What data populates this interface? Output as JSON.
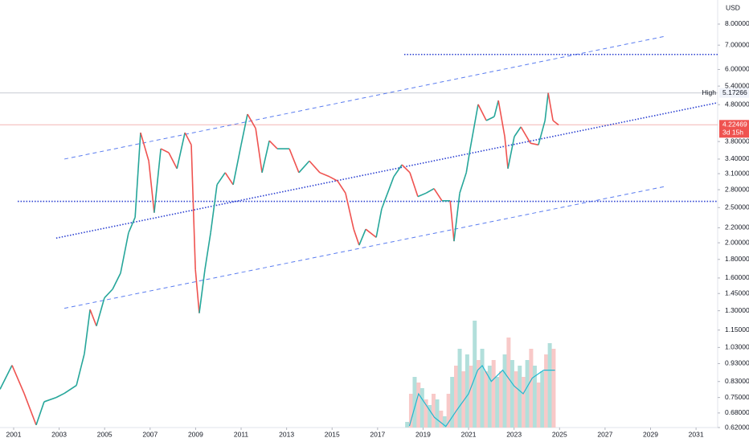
{
  "chart_data": {
    "type": "line",
    "currency": "USD",
    "log_scale": true,
    "xlim": [
      2000.4,
      2031.95
    ],
    "xticks": [
      2001,
      2003,
      2005,
      2007,
      2009,
      2011,
      2013,
      2015,
      2017,
      2019,
      2021,
      2023,
      2025,
      2027,
      2029,
      2031
    ],
    "ylim": [
      0.62,
      9.32
    ],
    "yticks": [
      {
        "value": 8,
        "label": "8.00000"
      },
      {
        "value": 7,
        "label": "7.00000"
      },
      {
        "value": 6,
        "label": "6.00000"
      },
      {
        "value": 5.4,
        "label": "5.40000"
      },
      {
        "value": 4.8,
        "label": "4.80000"
      },
      {
        "value": 3.8,
        "label": "3.80000"
      },
      {
        "value": 3.4,
        "label": "3.40000"
      },
      {
        "value": 3.1,
        "label": "3.10000"
      },
      {
        "value": 2.8,
        "label": "2.80000"
      },
      {
        "value": 2.5,
        "label": "2.50000"
      },
      {
        "value": 2.2,
        "label": "2.20000"
      },
      {
        "value": 2,
        "label": "2.00000"
      },
      {
        "value": 1.8,
        "label": "1.80000"
      },
      {
        "value": 1.6,
        "label": "1.60000"
      },
      {
        "value": 1.45,
        "label": "1.45000"
      },
      {
        "value": 1.3,
        "label": "1.30000"
      },
      {
        "value": 1.15,
        "label": "1.15000"
      },
      {
        "value": 1.03,
        "label": "1.03000"
      },
      {
        "value": 0.93,
        "label": "0.93000"
      },
      {
        "value": 0.83,
        "label": "0.83000"
      },
      {
        "value": 0.75,
        "label": "0.75000"
      },
      {
        "value": 0.68,
        "label": "0.68000"
      },
      {
        "value": 0.62,
        "label": "0.62000"
      }
    ],
    "up_color": "#26a69a",
    "down_color": "#ef5350",
    "x": [
      2000.4,
      2000.93,
      2001.46,
      2001.99,
      2002.34,
      2002.87,
      2003.23,
      2003.76,
      2004.11,
      2004.36,
      2004.64,
      2004.99,
      2005.35,
      2005.7,
      2006.05,
      2006.34,
      2006.58,
      2006.94,
      2007.18,
      2007.47,
      2007.82,
      2008.18,
      2008.53,
      2008.81,
      2008.99,
      2009.16,
      2009.41,
      2009.66,
      2009.94,
      2010.3,
      2010.65,
      2011.0,
      2011.28,
      2011.64,
      2011.92,
      2012.24,
      2012.59,
      2013.12,
      2013.54,
      2014.0,
      2014.46,
      2014.89,
      2015.24,
      2015.59,
      2015.95,
      2016.19,
      2016.48,
      2016.94,
      2017.18,
      2017.71,
      2018.07,
      2018.42,
      2018.77,
      2019.13,
      2019.48,
      2019.83,
      2020.19,
      2020.36,
      2020.61,
      2020.9,
      2021.07,
      2021.42,
      2021.78,
      2022.13,
      2022.31,
      2022.59,
      2022.73,
      2023.01,
      2023.3,
      2023.72,
      2024.07,
      2024.36,
      2024.5,
      2024.71,
      2024.96
    ],
    "values": [
      0.79,
      0.92,
      0.77,
      0.63,
      0.73,
      0.75,
      0.77,
      0.81,
      0.99,
      1.31,
      1.18,
      1.41,
      1.49,
      1.65,
      2.13,
      2.35,
      4.02,
      3.36,
      2.42,
      3.63,
      3.54,
      3.2,
      4.02,
      3.72,
      1.69,
      1.28,
      1.69,
      2.13,
      2.89,
      3.12,
      2.89,
      3.72,
      4.52,
      4.13,
      3.12,
      3.82,
      3.63,
      3.63,
      3.12,
      3.36,
      3.12,
      3.04,
      2.96,
      2.74,
      2.18,
      1.97,
      2.18,
      2.07,
      2.48,
      3.04,
      3.28,
      3.12,
      2.68,
      2.74,
      2.82,
      2.61,
      2.61,
      2.02,
      2.74,
      3.12,
      3.63,
      4.81,
      4.34,
      4.45,
      4.93,
      3.92,
      3.2,
      3.92,
      4.17,
      3.76,
      3.72,
      4.34,
      5.17,
      4.34,
      4.22
    ],
    "high": {
      "label": "High",
      "value": 5.17266
    },
    "last_price": 4.22469,
    "countdown": "3d 15h",
    "drawings": [
      {
        "style": "dotted",
        "color": "#2a3fd1",
        "x": [
          2002.87,
          2031.95
        ],
        "y": [
          2.06,
          4.86
        ]
      },
      {
        "style": "dashed",
        "color": "#5b7df0",
        "x": [
          2003.23,
          2029.66
        ],
        "y": [
          3.4,
          7.41
        ]
      },
      {
        "style": "dashed",
        "color": "#5b7df0",
        "x": [
          2003.23,
          2029.66
        ],
        "y": [
          1.32,
          2.86
        ]
      },
      {
        "style": "dotted",
        "color": "#2a3fd1",
        "x": [
          2018.17,
          2031.95
        ],
        "y": [
          6.6,
          6.6
        ]
      },
      {
        "style": "dotted",
        "color": "#2a3fd1",
        "x": [
          2001.18,
          2031.95
        ],
        "y": [
          2.6,
          2.6
        ]
      }
    ],
    "volume_lim": [
      0,
      100
    ],
    "volume": {
      "x": [
        2018.3,
        2018.47,
        2018.63,
        2018.8,
        2018.96,
        2019.13,
        2019.29,
        2019.46,
        2019.62,
        2019.79,
        2019.95,
        2020.12,
        2020.28,
        2020.45,
        2020.61,
        2020.78,
        2020.94,
        2021.11,
        2021.27,
        2021.44,
        2021.6,
        2021.77,
        2021.93,
        2022.1,
        2022.26,
        2022.43,
        2022.59,
        2022.76,
        2022.92,
        2023.09,
        2023.25,
        2023.42,
        2023.58,
        2023.75,
        2023.91,
        2024.08,
        2024.24,
        2024.41,
        2024.57,
        2024.74
      ],
      "values": [
        5,
        30,
        45,
        40,
        35,
        25,
        20,
        30,
        25,
        15,
        10,
        30,
        45,
        55,
        70,
        50,
        65,
        55,
        95,
        60,
        70,
        50,
        55,
        60,
        45,
        50,
        65,
        80,
        60,
        50,
        55,
        45,
        60,
        70,
        55,
        40,
        50,
        65,
        75,
        70
      ],
      "colors": [
        "#b2dfdb",
        "#f8c9c8"
      ],
      "ma_color": "#22b8cf",
      "ma_x": [
        2018.4,
        2018.8,
        2019.5,
        2020.0,
        2020.5,
        2021.0,
        2021.4,
        2021.6,
        2022.0,
        2022.5,
        2023.0,
        2023.4,
        2023.8,
        2024.3,
        2024.8
      ],
      "ma": [
        1.4,
        30,
        9,
        1,
        16,
        30,
        51,
        55,
        41,
        51,
        37,
        30,
        44,
        51,
        51
      ]
    }
  }
}
